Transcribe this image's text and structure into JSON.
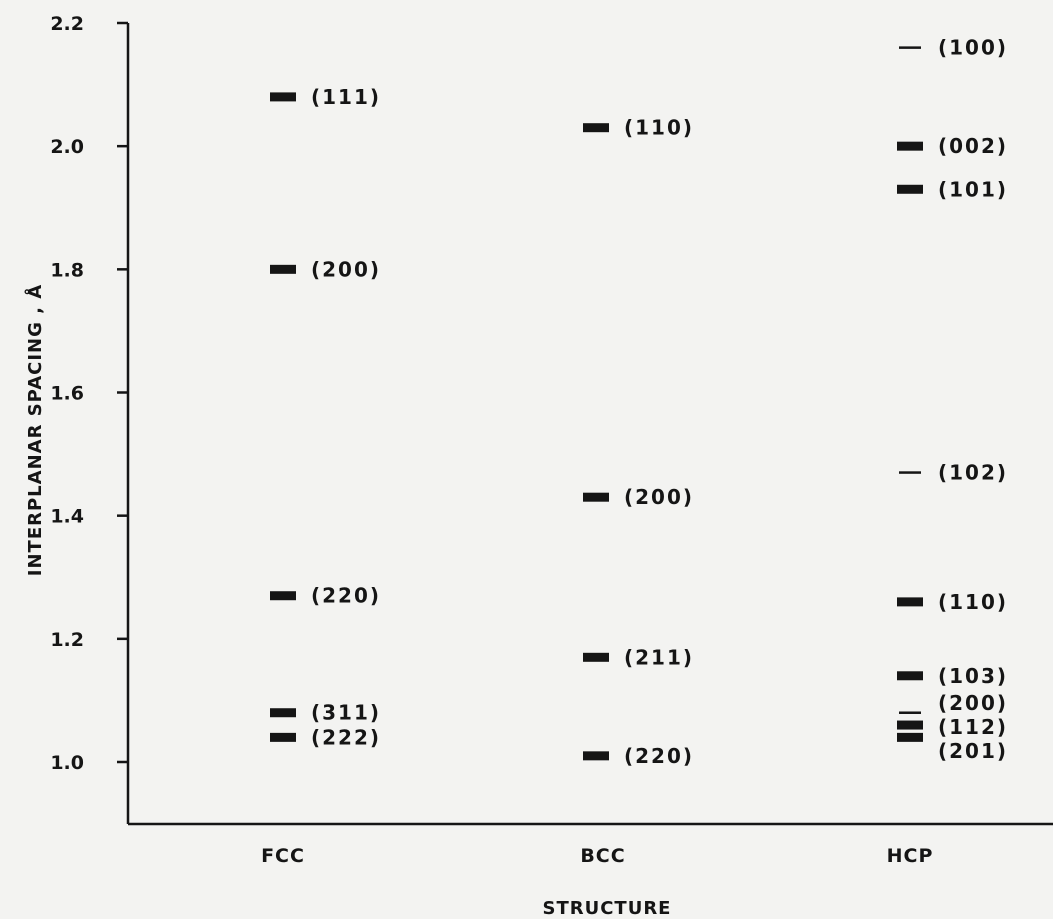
{
  "chart_data": {
    "type": "scatter",
    "xlabel": "STRUCTURE",
    "ylabel": "INTERPLANAR SPACING , Å",
    "ylim": [
      0.9,
      2.2
    ],
    "yticks": [
      "1.0",
      "1.2",
      "1.4",
      "1.6",
      "1.8",
      "2.0",
      "2.2"
    ],
    "categories": [
      "FCC",
      "BCC",
      "HCP"
    ],
    "series": [
      {
        "category": "FCC",
        "points": [
          {
            "label": "(111)",
            "y": 2.08,
            "intensity": "strong"
          },
          {
            "label": "(200)",
            "y": 1.8,
            "intensity": "strong"
          },
          {
            "label": "(220)",
            "y": 1.27,
            "intensity": "strong"
          },
          {
            "label": "(311)",
            "y": 1.08,
            "intensity": "strong"
          },
          {
            "label": "(222)",
            "y": 1.04,
            "intensity": "strong"
          }
        ]
      },
      {
        "category": "BCC",
        "points": [
          {
            "label": "(110)",
            "y": 2.03,
            "intensity": "strong"
          },
          {
            "label": "(200)",
            "y": 1.43,
            "intensity": "strong"
          },
          {
            "label": "(211)",
            "y": 1.17,
            "intensity": "strong"
          },
          {
            "label": "(220)",
            "y": 1.01,
            "intensity": "strong"
          }
        ]
      },
      {
        "category": "HCP",
        "points": [
          {
            "label": "(100)",
            "y": 2.16,
            "intensity": "weak"
          },
          {
            "label": "(002)",
            "y": 2.0,
            "intensity": "strong"
          },
          {
            "label": "(101)",
            "y": 1.93,
            "intensity": "strong"
          },
          {
            "label": "(102)",
            "y": 1.47,
            "intensity": "weak"
          },
          {
            "label": "(110)",
            "y": 1.26,
            "intensity": "strong"
          },
          {
            "label": "(103)",
            "y": 1.14,
            "intensity": "strong"
          },
          {
            "label": "(200)",
            "y": 1.08,
            "intensity": "weak"
          },
          {
            "label": "(112)",
            "y": 1.06,
            "intensity": "strong"
          },
          {
            "label": "(201)",
            "y": 1.04,
            "intensity": "strong"
          }
        ]
      }
    ],
    "grid": false,
    "colors": {
      "ink": "#151515",
      "background": "#f3f3f1"
    }
  }
}
